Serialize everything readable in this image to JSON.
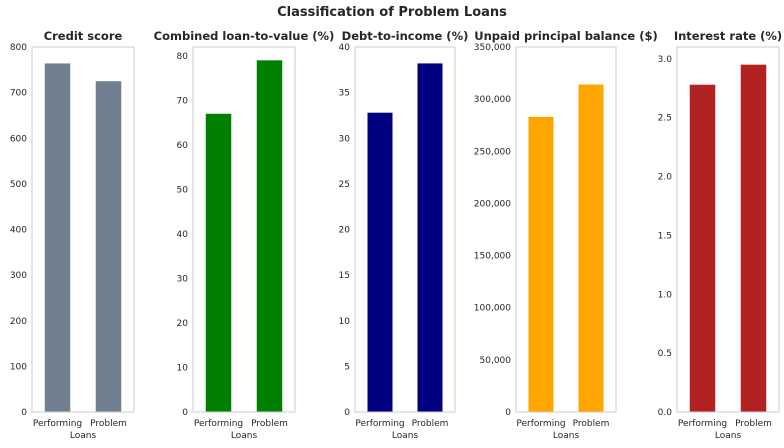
{
  "chart_data": {
    "type": "bar",
    "title": "Classification of Problem Loans",
    "xlabel": "Loans",
    "categories": [
      "Performing",
      "Problem"
    ],
    "grid": false,
    "panels": [
      {
        "title": "Credit score",
        "color": "#708090",
        "values": [
          764,
          725
        ],
        "ylim": [
          0,
          800
        ],
        "yticks": [
          0,
          100,
          200,
          300,
          400,
          500,
          600,
          700,
          800
        ],
        "ytick_labels": [
          "0",
          "100",
          "200",
          "300",
          "400",
          "500",
          "600",
          "700",
          "800"
        ]
      },
      {
        "title": "Combined loan-to-value (%)",
        "color": "#008000",
        "values": [
          67.0,
          79.0
        ],
        "ylim": [
          0,
          82
        ],
        "yticks": [
          0,
          10,
          20,
          30,
          40,
          50,
          60,
          70,
          80
        ],
        "ytick_labels": [
          "0",
          "10",
          "20",
          "30",
          "40",
          "50",
          "60",
          "70",
          "80"
        ]
      },
      {
        "title": "Debt-to-income (%)",
        "color": "#000080",
        "values": [
          32.8,
          38.2
        ],
        "ylim": [
          0,
          40
        ],
        "yticks": [
          0,
          5,
          10,
          15,
          20,
          25,
          30,
          35,
          40
        ],
        "ytick_labels": [
          "0",
          "5",
          "10",
          "15",
          "20",
          "25",
          "30",
          "35",
          "40"
        ]
      },
      {
        "title": "Unpaid principal balance ($)",
        "color": "#FFA500",
        "values": [
          283000,
          314000
        ],
        "ylim": [
          0,
          350000
        ],
        "yticks": [
          0,
          50000,
          100000,
          150000,
          200000,
          250000,
          300000,
          350000
        ],
        "ytick_labels": [
          "0",
          "50,000",
          "100,000",
          "150,000",
          "200,000",
          "250,000",
          "300,000",
          "350,000"
        ]
      },
      {
        "title": "Interest rate (%)",
        "color": "#B22222",
        "values": [
          2.78,
          2.95
        ],
        "ylim": [
          0,
          3.1
        ],
        "yticks": [
          0,
          0.5,
          1.0,
          1.5,
          2.0,
          2.5,
          3.0
        ],
        "ytick_labels": [
          "0.0",
          "0.5",
          "1.0",
          "1.5",
          "2.0",
          "2.5",
          "3.0"
        ]
      }
    ]
  }
}
